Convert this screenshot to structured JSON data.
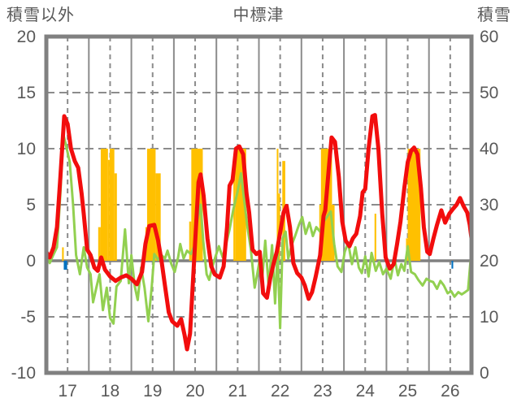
{
  "header": {
    "left_axis_title": "積雪以外",
    "chart_title": "中標津",
    "right_axis_title": "積雪"
  },
  "chart_data": {
    "type": "line",
    "title": "中標津",
    "subtitle": "",
    "legend": false,
    "grid": true,
    "x_axis": {
      "min": 17,
      "max": 27,
      "tick_labels": [
        "17",
        "18",
        "19",
        "20",
        "21",
        "22",
        "23",
        "24",
        "25",
        "26"
      ],
      "note": "day of month; solid gridline at each day boundary, dashed gridline at each noon"
    },
    "left_axis": {
      "title": "積雪以外",
      "min": -10,
      "max": 20,
      "ticks": [
        20,
        15,
        10,
        5,
        0,
        -5,
        -10
      ]
    },
    "right_axis": {
      "title": "積雪",
      "min": 0,
      "max": 60,
      "ticks": [
        60,
        50,
        40,
        30,
        20,
        10,
        0
      ]
    },
    "series": [
      {
        "name": "sunshine-bars",
        "type": "bar",
        "axis": "left",
        "color": "#ffc000",
        "segments": [
          [
            17.37,
            17.41,
            1.2
          ],
          [
            18.22,
            18.28,
            3.0
          ],
          [
            18.28,
            18.45,
            10
          ],
          [
            18.45,
            18.49,
            9.0
          ],
          [
            18.49,
            18.6,
            10
          ],
          [
            18.6,
            18.66,
            7.8
          ],
          [
            19.33,
            19.37,
            3.0
          ],
          [
            19.37,
            19.57,
            10
          ],
          [
            19.57,
            19.69,
            7.8
          ],
          [
            20.36,
            20.41,
            3.5
          ],
          [
            20.41,
            20.68,
            10
          ],
          [
            21.4,
            21.44,
            8.0
          ],
          [
            21.44,
            21.7,
            10
          ],
          [
            22.42,
            22.45,
            10
          ],
          [
            22.46,
            22.49,
            6.0
          ],
          [
            22.55,
            22.62,
            8.9
          ],
          [
            23.42,
            23.46,
            5.0
          ],
          [
            23.46,
            23.72,
            10
          ],
          [
            23.72,
            23.78,
            5.0
          ],
          [
            24.72,
            24.76,
            4.2
          ],
          [
            25.46,
            25.5,
            2.0
          ],
          [
            25.5,
            25.8,
            10
          ]
        ]
      },
      {
        "name": "precipitation-bars",
        "type": "bar",
        "axis": "left",
        "color": "#0070c0",
        "segments": [
          [
            17.41,
            17.49,
            -0.8
          ],
          [
            26.53,
            26.57,
            -0.7
          ]
        ]
      },
      {
        "name": "snow-depth-line",
        "type": "line",
        "axis": "right",
        "color": "#7030a0",
        "width": 4,
        "points": [
          [
            17,
            0
          ],
          [
            27,
            0
          ]
        ]
      },
      {
        "name": "green-line",
        "type": "line",
        "axis": "left",
        "color": "#92d050",
        "width": 3,
        "points": [
          [
            17.0,
            0.9
          ],
          [
            17.08,
            -0.2
          ],
          [
            17.15,
            0.4
          ],
          [
            17.25,
            1.2
          ],
          [
            17.33,
            6.0
          ],
          [
            17.4,
            11.3
          ],
          [
            17.48,
            10.0
          ],
          [
            17.55,
            8.8
          ],
          [
            17.63,
            5.0
          ],
          [
            17.7,
            0.5
          ],
          [
            17.79,
            -1.2
          ],
          [
            17.88,
            1.2
          ],
          [
            17.96,
            -0.6
          ],
          [
            18.04,
            -1.2
          ],
          [
            18.1,
            -3.7
          ],
          [
            18.17,
            -2.5
          ],
          [
            18.25,
            -1.2
          ],
          [
            18.33,
            -4.4
          ],
          [
            18.42,
            -2.4
          ],
          [
            18.5,
            -5.1
          ],
          [
            18.58,
            -5.6
          ],
          [
            18.65,
            -2.3
          ],
          [
            18.75,
            -1.8
          ],
          [
            18.85,
            2.8
          ],
          [
            18.94,
            -2.0
          ],
          [
            19.0,
            0.5
          ],
          [
            19.08,
            -2.3
          ],
          [
            19.15,
            -3.5
          ],
          [
            19.23,
            -0.6
          ],
          [
            19.31,
            -2.4
          ],
          [
            19.4,
            -5.4
          ],
          [
            19.48,
            -2.3
          ],
          [
            19.54,
            0.6
          ],
          [
            19.63,
            0.1
          ],
          [
            19.71,
            0.5
          ],
          [
            19.79,
            0.2
          ],
          [
            19.85,
            0.9
          ],
          [
            19.94,
            -0.3
          ],
          [
            20.02,
            -1.0
          ],
          [
            20.1,
            0.3
          ],
          [
            20.15,
            1.5
          ],
          [
            20.23,
            0.2
          ],
          [
            20.31,
            0.9
          ],
          [
            20.4,
            0.6
          ],
          [
            20.48,
            1.3
          ],
          [
            20.56,
            3.8
          ],
          [
            20.63,
            5.0
          ],
          [
            20.69,
            1.8
          ],
          [
            20.77,
            -1.2
          ],
          [
            20.83,
            -1.7
          ],
          [
            20.9,
            -0.6
          ],
          [
            20.98,
            0.4
          ],
          [
            21.06,
            1.3
          ],
          [
            21.15,
            0.3
          ],
          [
            21.23,
            1.5
          ],
          [
            21.31,
            2.8
          ],
          [
            21.4,
            4.6
          ],
          [
            21.5,
            6.2
          ],
          [
            21.58,
            7.8
          ],
          [
            21.65,
            5.5
          ],
          [
            21.73,
            3.0
          ],
          [
            21.81,
            1.0
          ],
          [
            21.9,
            -2.4
          ],
          [
            21.96,
            -1.2
          ],
          [
            22.04,
            0.6
          ],
          [
            22.08,
            -1.5
          ],
          [
            22.15,
            1.8
          ],
          [
            22.23,
            -2.3
          ],
          [
            22.31,
            1.4
          ],
          [
            22.38,
            -3.8
          ],
          [
            22.44,
            1.0
          ],
          [
            22.5,
            -6.0
          ],
          [
            22.56,
            2.0
          ],
          [
            22.63,
            2.6
          ],
          [
            22.69,
            0.2
          ],
          [
            22.77,
            1.4
          ],
          [
            22.85,
            2.2
          ],
          [
            22.94,
            3.2
          ],
          [
            23.02,
            3.9
          ],
          [
            23.1,
            2.4
          ],
          [
            23.19,
            3.4
          ],
          [
            23.27,
            2.2
          ],
          [
            23.35,
            3.0
          ],
          [
            23.44,
            2.6
          ],
          [
            23.52,
            3.5
          ],
          [
            23.6,
            3.9
          ],
          [
            23.69,
            4.4
          ],
          [
            23.77,
            1.5
          ],
          [
            23.85,
            -0.5
          ],
          [
            23.94,
            -1.0
          ],
          [
            24.02,
            0.8
          ],
          [
            24.1,
            1.6
          ],
          [
            24.19,
            -0.3
          ],
          [
            24.27,
            1.2
          ],
          [
            24.35,
            -0.6
          ],
          [
            24.42,
            -1.1
          ],
          [
            24.5,
            0.4
          ],
          [
            24.58,
            -1.4
          ],
          [
            24.65,
            0.7
          ],
          [
            24.75,
            -0.9
          ],
          [
            24.83,
            -0.1
          ],
          [
            24.92,
            -1.2
          ],
          [
            25.0,
            -0.7
          ],
          [
            25.1,
            -1.6
          ],
          [
            25.19,
            0.2
          ],
          [
            25.27,
            -1.3
          ],
          [
            25.35,
            -0.3
          ],
          [
            25.42,
            -0.9
          ],
          [
            25.5,
            1.3
          ],
          [
            25.58,
            -1.0
          ],
          [
            25.67,
            -1.2
          ],
          [
            25.75,
            -1.7
          ],
          [
            25.85,
            -2.2
          ],
          [
            25.94,
            -1.6
          ],
          [
            26.02,
            -1.8
          ],
          [
            26.1,
            -1.9
          ],
          [
            26.19,
            -2.5
          ],
          [
            26.27,
            -1.8
          ],
          [
            26.35,
            -2.2
          ],
          [
            26.44,
            -2.9
          ],
          [
            26.52,
            -2.7
          ],
          [
            26.6,
            -3.2
          ],
          [
            26.69,
            -2.8
          ],
          [
            26.77,
            -3.0
          ],
          [
            26.85,
            -2.8
          ],
          [
            26.92,
            -2.6
          ],
          [
            26.96,
            -0.8
          ],
          [
            27.0,
            1.0
          ]
        ]
      },
      {
        "name": "temperature-line",
        "type": "line",
        "axis": "left",
        "color": "#f20d0d",
        "width": 5,
        "points": [
          [
            17.0,
            0.8
          ],
          [
            17.08,
            0.3
          ],
          [
            17.17,
            1.2
          ],
          [
            17.25,
            3.0
          ],
          [
            17.33,
            7.5
          ],
          [
            17.42,
            12.9
          ],
          [
            17.5,
            12.2
          ],
          [
            17.58,
            10.0
          ],
          [
            17.67,
            8.9
          ],
          [
            17.75,
            8.3
          ],
          [
            17.83,
            6.0
          ],
          [
            17.88,
            4.2
          ],
          [
            17.96,
            1.0
          ],
          [
            18.04,
            0.5
          ],
          [
            18.13,
            -0.6
          ],
          [
            18.21,
            -0.9
          ],
          [
            18.29,
            0.3
          ],
          [
            18.38,
            -0.8
          ],
          [
            18.5,
            -1.4
          ],
          [
            18.63,
            -1.8
          ],
          [
            18.75,
            -1.5
          ],
          [
            18.88,
            -1.3
          ],
          [
            19.0,
            -1.6
          ],
          [
            19.13,
            -2.1
          ],
          [
            19.25,
            -1.0
          ],
          [
            19.33,
            1.5
          ],
          [
            19.42,
            3.1
          ],
          [
            19.54,
            3.2
          ],
          [
            19.63,
            1.8
          ],
          [
            19.71,
            0.0
          ],
          [
            19.79,
            -2.2
          ],
          [
            19.88,
            -4.6
          ],
          [
            19.96,
            -5.4
          ],
          [
            20.08,
            -5.8
          ],
          [
            20.17,
            -5.2
          ],
          [
            20.25,
            -6.6
          ],
          [
            20.31,
            -7.9
          ],
          [
            20.38,
            -6.5
          ],
          [
            20.46,
            -1.0
          ],
          [
            20.52,
            3.0
          ],
          [
            20.58,
            7.0
          ],
          [
            20.63,
            7.7
          ],
          [
            20.7,
            5.8
          ],
          [
            20.79,
            2.0
          ],
          [
            20.88,
            -0.5
          ],
          [
            20.96,
            -1.2
          ],
          [
            21.08,
            -1.5
          ],
          [
            21.17,
            -0.5
          ],
          [
            21.25,
            3.0
          ],
          [
            21.31,
            6.7
          ],
          [
            21.38,
            7.2
          ],
          [
            21.46,
            10.0
          ],
          [
            21.54,
            10.2
          ],
          [
            21.63,
            9.5
          ],
          [
            21.71,
            6.0
          ],
          [
            21.77,
            4.3
          ],
          [
            21.85,
            1.0
          ],
          [
            21.94,
            0.6
          ],
          [
            22.02,
            0.8
          ],
          [
            22.1,
            -2.9
          ],
          [
            22.19,
            -3.3
          ],
          [
            22.27,
            -1.5
          ],
          [
            22.35,
            -0.2
          ],
          [
            22.42,
            0.8
          ],
          [
            22.5,
            2.5
          ],
          [
            22.58,
            4.3
          ],
          [
            22.65,
            4.9
          ],
          [
            22.73,
            3.0
          ],
          [
            22.81,
            -0.2
          ],
          [
            22.9,
            -1.1
          ],
          [
            23.0,
            -1.5
          ],
          [
            23.08,
            -2.2
          ],
          [
            23.17,
            -3.4
          ],
          [
            23.25,
            -2.8
          ],
          [
            23.33,
            -1.5
          ],
          [
            23.44,
            0.5
          ],
          [
            23.52,
            4.0
          ],
          [
            23.56,
            4.5
          ],
          [
            23.65,
            8.5
          ],
          [
            23.71,
            11.0
          ],
          [
            23.79,
            10.6
          ],
          [
            23.88,
            7.5
          ],
          [
            23.96,
            3.5
          ],
          [
            24.04,
            1.8
          ],
          [
            24.13,
            1.3
          ],
          [
            24.21,
            2.0
          ],
          [
            24.29,
            2.4
          ],
          [
            24.38,
            4.0
          ],
          [
            24.44,
            6.1
          ],
          [
            24.5,
            6.4
          ],
          [
            24.58,
            10.0
          ],
          [
            24.67,
            12.9
          ],
          [
            24.73,
            13.0
          ],
          [
            24.81,
            10.0
          ],
          [
            24.9,
            4.2
          ],
          [
            24.98,
            0.3
          ],
          [
            25.08,
            -0.7
          ],
          [
            25.17,
            -0.3
          ],
          [
            25.25,
            1.5
          ],
          [
            25.33,
            3.5
          ],
          [
            25.42,
            6.5
          ],
          [
            25.5,
            8.8
          ],
          [
            25.58,
            9.8
          ],
          [
            25.65,
            10.1
          ],
          [
            25.73,
            9.5
          ],
          [
            25.81,
            6.5
          ],
          [
            25.88,
            3.0
          ],
          [
            25.96,
            0.8
          ],
          [
            26.02,
            0.6
          ],
          [
            26.1,
            1.9
          ],
          [
            26.19,
            3.2
          ],
          [
            26.29,
            4.5
          ],
          [
            26.38,
            3.4
          ],
          [
            26.48,
            4.2
          ],
          [
            26.56,
            4.6
          ],
          [
            26.65,
            5.0
          ],
          [
            26.73,
            5.6
          ],
          [
            26.81,
            4.9
          ],
          [
            26.9,
            4.3
          ],
          [
            26.96,
            3.2
          ],
          [
            27.0,
            2.0
          ]
        ]
      }
    ],
    "style_colors": {
      "border": "#808080",
      "gridline": "#8c8c8c",
      "zero_line": "#808080",
      "tick_label": "#595959"
    }
  }
}
